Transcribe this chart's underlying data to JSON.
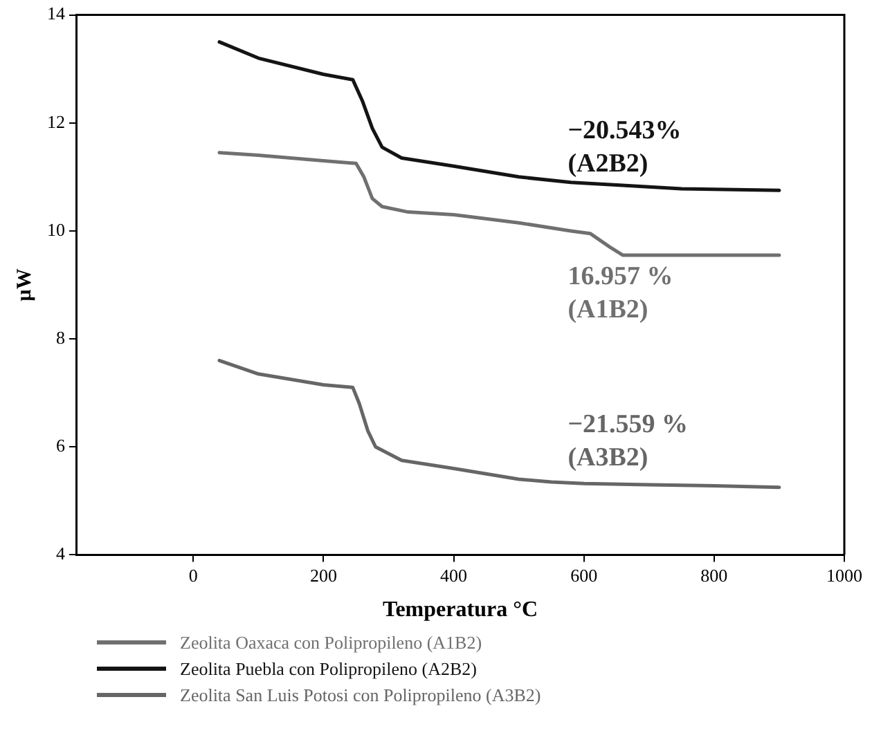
{
  "chart_data": {
    "type": "line",
    "xlabel": "Temperatura °C",
    "ylabel": "µW",
    "xlim": [
      -180,
      1000
    ],
    "xticks": [
      0,
      200,
      400,
      600,
      800,
      1000
    ],
    "ylim": [
      4,
      14
    ],
    "yticks": [
      4,
      6,
      8,
      10,
      12,
      14
    ],
    "grid": false,
    "legend": "bottom",
    "marker": "none",
    "line_style": "solid",
    "series": [
      {
        "name": "Zeolita Oaxaca con Polipropileno (A1B2)",
        "color": "#707070",
        "x": [
          40,
          100,
          200,
          250,
          262,
          275,
          290,
          330,
          400,
          500,
          580,
          610,
          640,
          660,
          700,
          800,
          900
        ],
        "values": [
          11.45,
          11.4,
          11.3,
          11.25,
          11.0,
          10.6,
          10.45,
          10.35,
          10.3,
          10.15,
          10.0,
          9.95,
          9.7,
          9.55,
          9.55,
          9.55,
          9.55
        ]
      },
      {
        "name": "Zeolita Puebla con Polipropileno (A2B2)",
        "color": "#141414",
        "x": [
          40,
          100,
          200,
          245,
          260,
          275,
          290,
          320,
          400,
          500,
          580,
          650,
          750,
          900
        ],
        "values": [
          13.5,
          13.2,
          12.9,
          12.8,
          12.4,
          11.9,
          11.55,
          11.35,
          11.2,
          11.0,
          10.9,
          10.85,
          10.78,
          10.75
        ]
      },
      {
        "name": "Zeolita San Luis Potosi con Polipropileno (A3B2)",
        "color": "#666666",
        "x": [
          40,
          100,
          200,
          245,
          255,
          268,
          280,
          320,
          400,
          450,
          500,
          550,
          600,
          700,
          800,
          900
        ],
        "values": [
          7.6,
          7.35,
          7.15,
          7.1,
          6.8,
          6.3,
          6.0,
          5.75,
          5.6,
          5.5,
          5.4,
          5.35,
          5.32,
          5.3,
          5.28,
          5.25
        ]
      }
    ],
    "annotations": [
      "16.957 % (A1B2)",
      "−20.543% (A2B2)",
      "−21.559 % (A3B2)"
    ]
  }
}
